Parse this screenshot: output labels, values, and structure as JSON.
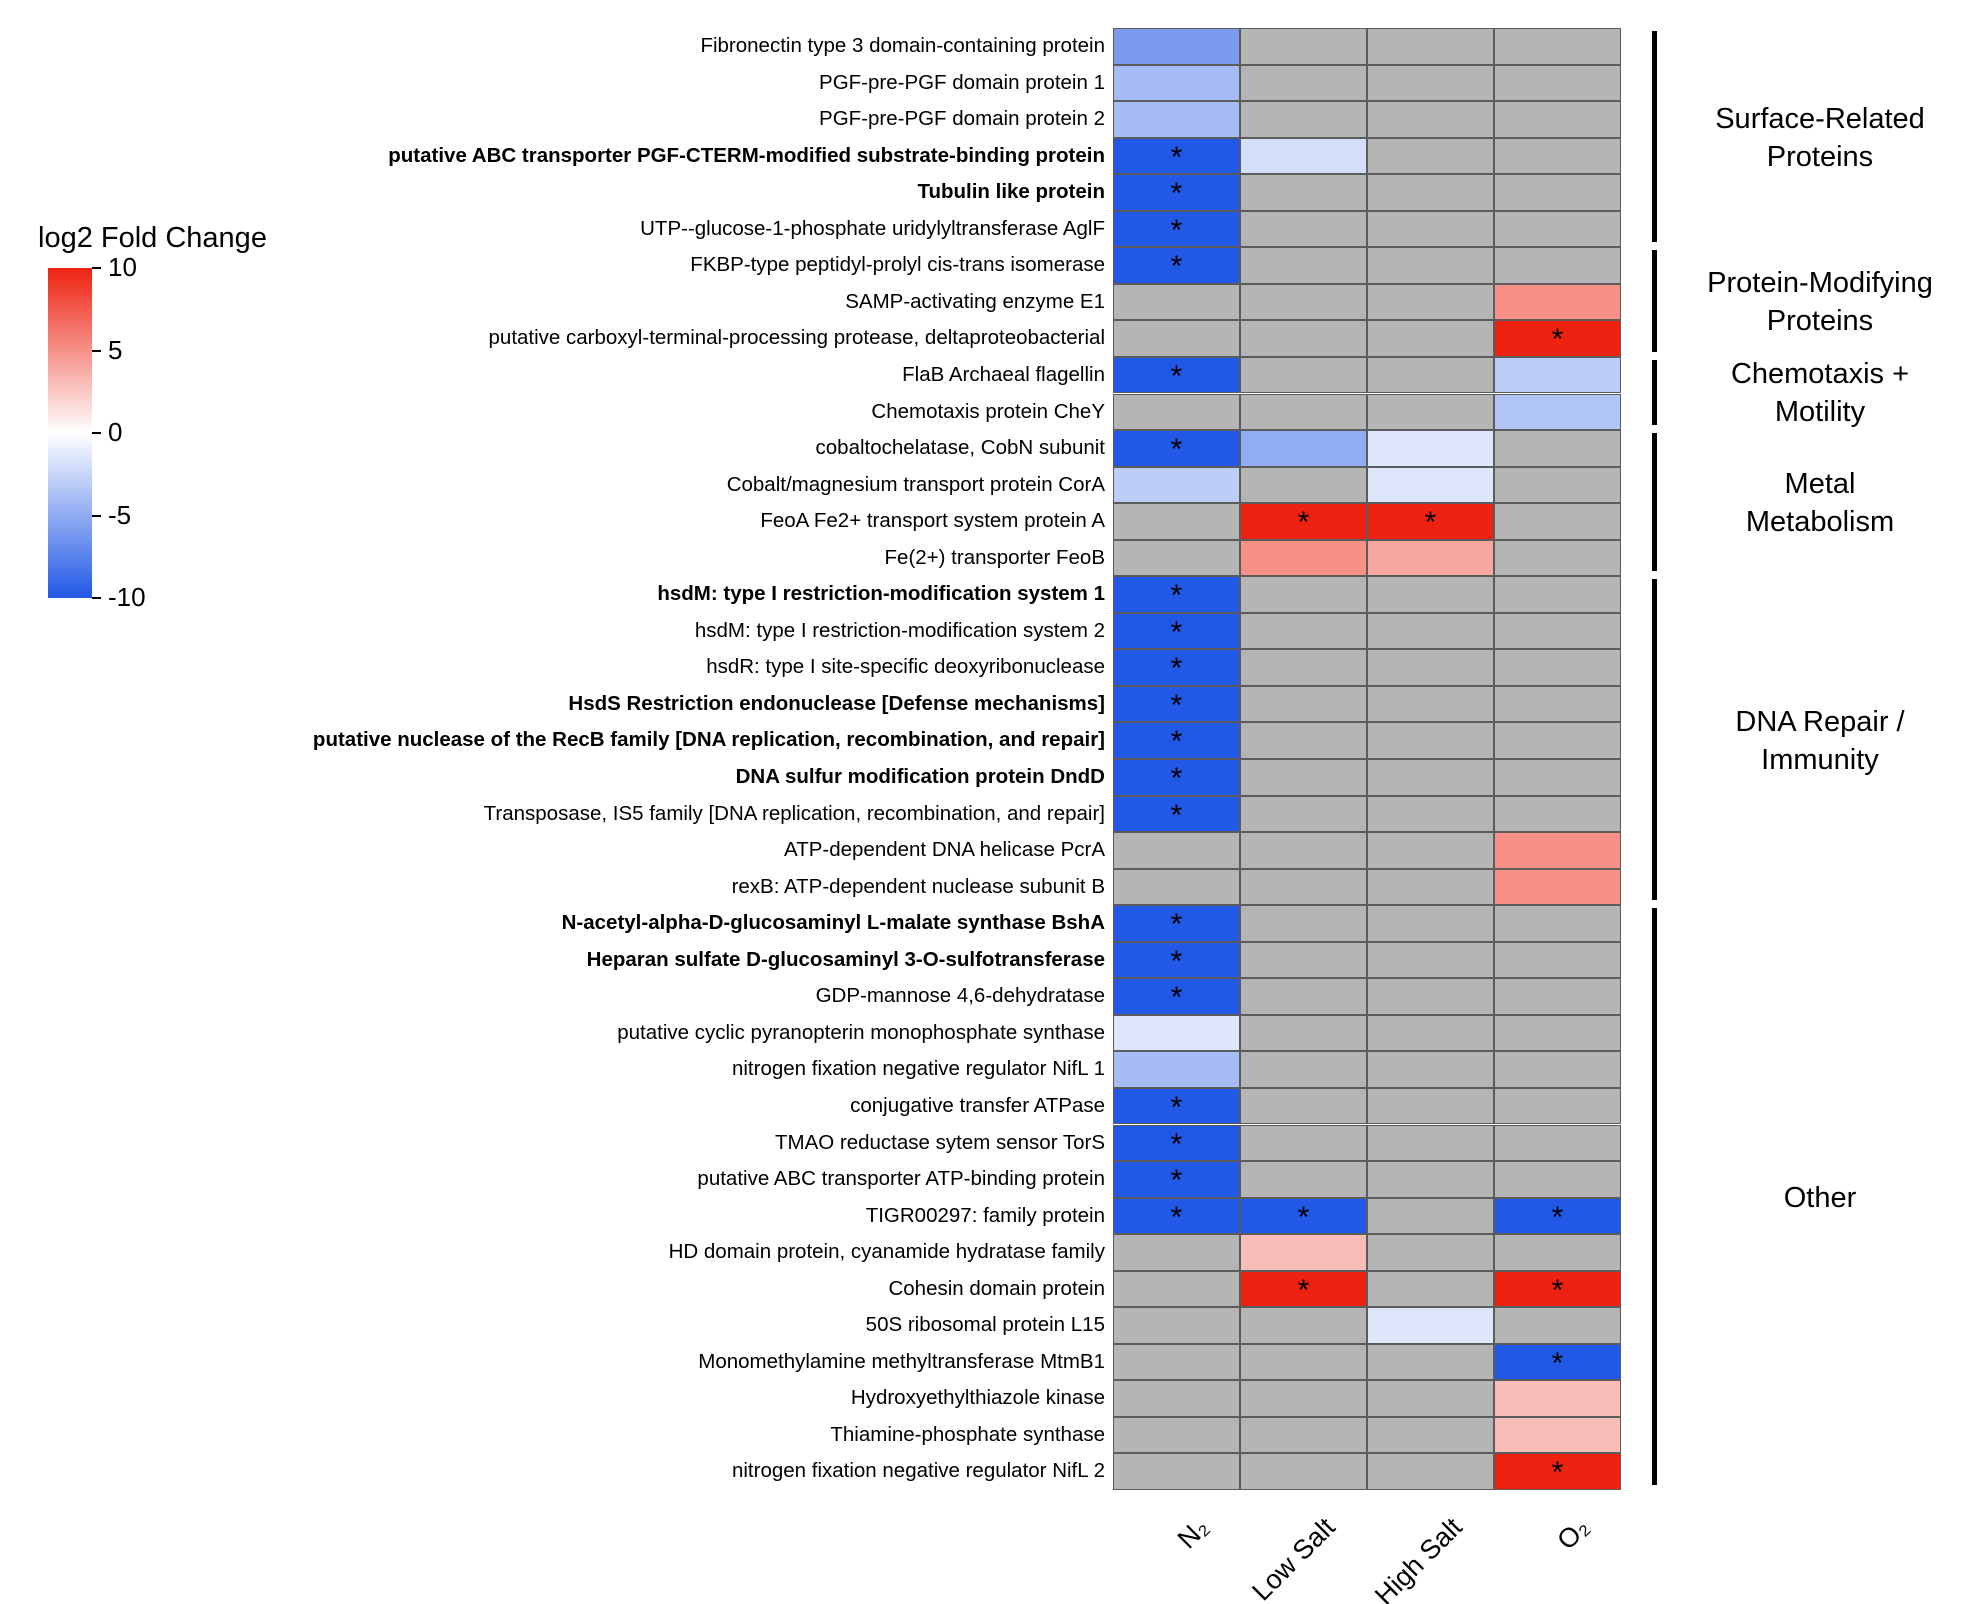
{
  "legend": {
    "title": "log2 Fold Change",
    "ticks": [
      "10",
      "5",
      "0",
      "-5",
      "-10"
    ]
  },
  "chart_data": {
    "type": "heatmap",
    "title": "",
    "columns": [
      "N₂",
      "Low Salt",
      "High Salt",
      "O₂"
    ],
    "value_range": [
      -10,
      10
    ],
    "positive_color": "#ee2211",
    "zero_color": "#ffffff",
    "negative_color": "#2158e6",
    "no_data_color": "#b5b5b5",
    "grid_line_color": "#5c5c5c",
    "star_symbol": "*",
    "star_meaning": "significant",
    "rows": [
      {
        "label": "Fibronectin type 3 domain-containing protein",
        "bold": false,
        "values": [
          -6,
          null,
          null,
          null
        ],
        "stars": []
      },
      {
        "label": "PGF-pre-PGF domain protein 1",
        "bold": false,
        "values": [
          -4,
          null,
          null,
          null
        ],
        "stars": []
      },
      {
        "label": "PGF-pre-PGF domain protein 2",
        "bold": false,
        "values": [
          -4,
          null,
          null,
          null
        ],
        "stars": []
      },
      {
        "label": "putative ABC transporter PGF-CTERM-modified substrate-binding protein",
        "bold": true,
        "values": [
          -10,
          -2,
          null,
          null
        ],
        "stars": [
          0
        ]
      },
      {
        "label": "Tubulin like protein",
        "bold": true,
        "values": [
          -10,
          null,
          null,
          null
        ],
        "stars": [
          0
        ]
      },
      {
        "label": "UTP--glucose-1-phosphate uridylyltransferase AglF",
        "bold": false,
        "values": [
          -10,
          null,
          null,
          null
        ],
        "stars": [
          0
        ]
      },
      {
        "label": "FKBP-type peptidyl-prolyl cis-trans isomerase",
        "bold": false,
        "values": [
          -10,
          null,
          null,
          null
        ],
        "stars": [
          0
        ]
      },
      {
        "label": "SAMP-activating enzyme E1",
        "bold": false,
        "values": [
          null,
          null,
          null,
          5
        ],
        "stars": []
      },
      {
        "label": "putative carboxyl-terminal-processing protease, deltaproteobacterial",
        "bold": false,
        "values": [
          null,
          null,
          null,
          10
        ],
        "stars": [
          3
        ]
      },
      {
        "label": "FlaB Archaeal flagellin",
        "bold": false,
        "values": [
          -10,
          null,
          null,
          -3
        ],
        "stars": [
          0
        ]
      },
      {
        "label": "Chemotaxis protein CheY",
        "bold": false,
        "values": [
          null,
          null,
          null,
          -3.5
        ],
        "stars": []
      },
      {
        "label": "cobaltochelatase, CobN subunit",
        "bold": false,
        "values": [
          -10,
          -5,
          -1.5,
          null
        ],
        "stars": [
          0
        ]
      },
      {
        "label": "Cobalt/magnesium transport protein CorA",
        "bold": false,
        "values": [
          -3,
          null,
          -1.5,
          null
        ],
        "stars": []
      },
      {
        "label": "FeoA Fe2+ transport system protein A",
        "bold": false,
        "values": [
          null,
          10,
          10,
          null
        ],
        "stars": [
          1,
          2
        ]
      },
      {
        "label": "Fe(2+) transporter FeoB",
        "bold": false,
        "values": [
          null,
          5,
          4,
          null
        ],
        "stars": []
      },
      {
        "label": "hsdM: type I restriction-modification system 1",
        "bold": true,
        "values": [
          -10,
          null,
          null,
          null
        ],
        "stars": [
          0
        ]
      },
      {
        "label": "hsdM: type I restriction-modification system 2",
        "bold": false,
        "values": [
          -10,
          null,
          null,
          null
        ],
        "stars": [
          0
        ]
      },
      {
        "label": "hsdR: type I site-specific deoxyribonuclease",
        "bold": false,
        "values": [
          -10,
          null,
          null,
          null
        ],
        "stars": [
          0
        ]
      },
      {
        "label": "HsdS Restriction endonuclease [Defense mechanisms]",
        "bold": true,
        "values": [
          -10,
          null,
          null,
          null
        ],
        "stars": [
          0
        ]
      },
      {
        "label": "putative nuclease of the RecB family [DNA replication, recombination, and repair]",
        "bold": true,
        "values": [
          -10,
          null,
          null,
          null
        ],
        "stars": [
          0
        ]
      },
      {
        "label": "DNA sulfur modification protein DndD",
        "bold": true,
        "values": [
          -10,
          null,
          null,
          null
        ],
        "stars": [
          0
        ]
      },
      {
        "label": "Transposase, IS5 family [DNA replication, recombination, and repair]",
        "bold": false,
        "values": [
          -10,
          null,
          null,
          null
        ],
        "stars": [
          0
        ]
      },
      {
        "label": "ATP-dependent DNA helicase PcrA",
        "bold": false,
        "values": [
          null,
          null,
          null,
          5
        ],
        "stars": []
      },
      {
        "label": "rexB: ATP-dependent nuclease subunit B",
        "bold": false,
        "values": [
          null,
          null,
          null,
          5
        ],
        "stars": []
      },
      {
        "label": "N-acetyl-alpha-D-glucosaminyl L-malate synthase BshA",
        "bold": true,
        "values": [
          -10,
          null,
          null,
          null
        ],
        "stars": [
          0
        ]
      },
      {
        "label": "Heparan sulfate D-glucosaminyl 3-O-sulfotransferase",
        "bold": true,
        "values": [
          -10,
          null,
          null,
          null
        ],
        "stars": [
          0
        ]
      },
      {
        "label": "GDP-mannose 4,6-dehydratase",
        "bold": false,
        "values": [
          -10,
          null,
          null,
          null
        ],
        "stars": [
          0
        ]
      },
      {
        "label": "putative cyclic pyranopterin monophosphate synthase",
        "bold": false,
        "values": [
          -1.5,
          null,
          null,
          null
        ],
        "stars": []
      },
      {
        "label": "nitrogen fixation negative regulator NifL 1",
        "bold": false,
        "values": [
          -4,
          null,
          null,
          null
        ],
        "stars": []
      },
      {
        "label": "conjugative transfer ATPase",
        "bold": false,
        "values": [
          -10,
          null,
          null,
          null
        ],
        "stars": [
          0
        ]
      },
      {
        "label": "TMAO reductase sytem sensor TorS",
        "bold": false,
        "values": [
          -10,
          null,
          null,
          null
        ],
        "stars": [
          0
        ]
      },
      {
        "label": "putative ABC transporter ATP-binding protein",
        "bold": false,
        "values": [
          -10,
          null,
          null,
          null
        ],
        "stars": [
          0
        ]
      },
      {
        "label": "TIGR00297: family protein",
        "bold": false,
        "values": [
          -10,
          -10,
          null,
          -10
        ],
        "stars": [
          0,
          1,
          3
        ]
      },
      {
        "label": "HD domain protein, cyanamide hydratase family",
        "bold": false,
        "values": [
          null,
          3,
          null,
          null
        ],
        "stars": []
      },
      {
        "label": "Cohesin domain protein",
        "bold": false,
        "values": [
          null,
          10,
          null,
          10
        ],
        "stars": [
          1,
          3
        ]
      },
      {
        "label": "50S ribosomal protein L15",
        "bold": false,
        "values": [
          null,
          null,
          -1.5,
          null
        ],
        "stars": []
      },
      {
        "label": "Monomethylamine methyltransferase MtmB1",
        "bold": false,
        "values": [
          null,
          null,
          null,
          -10
        ],
        "stars": [
          3
        ]
      },
      {
        "label": "Hydroxyethylthiazole kinase",
        "bold": false,
        "values": [
          null,
          null,
          null,
          3
        ],
        "stars": []
      },
      {
        "label": "Thiamine-phosphate synthase",
        "bold": false,
        "values": [
          null,
          null,
          null,
          3
        ],
        "stars": []
      },
      {
        "label": "nitrogen fixation negative regulator NifL 2",
        "bold": false,
        "values": [
          null,
          null,
          null,
          10
        ],
        "stars": [
          3
        ]
      }
    ],
    "groups": [
      {
        "label": "Surface-Related Proteins",
        "lines": [
          "Surface-Related",
          "Proteins"
        ],
        "start": 0,
        "end": 5
      },
      {
        "label": "Protein-Modifying Proteins",
        "lines": [
          "Protein-Modifying",
          "Proteins"
        ],
        "start": 6,
        "end": 8
      },
      {
        "label": "Chemotaxis + Motility",
        "lines": [
          "Chemotaxis +",
          "Motility"
        ],
        "start": 9,
        "end": 10
      },
      {
        "label": "Metal Metabolism",
        "lines": [
          "Metal",
          "Metabolism"
        ],
        "start": 11,
        "end": 14
      },
      {
        "label": "DNA Repair / Immunity",
        "lines": [
          "DNA Repair /",
          "Immunity"
        ],
        "start": 15,
        "end": 23
      },
      {
        "label": "Other",
        "lines": [
          "Other"
        ],
        "start": 24,
        "end": 39
      }
    ]
  }
}
